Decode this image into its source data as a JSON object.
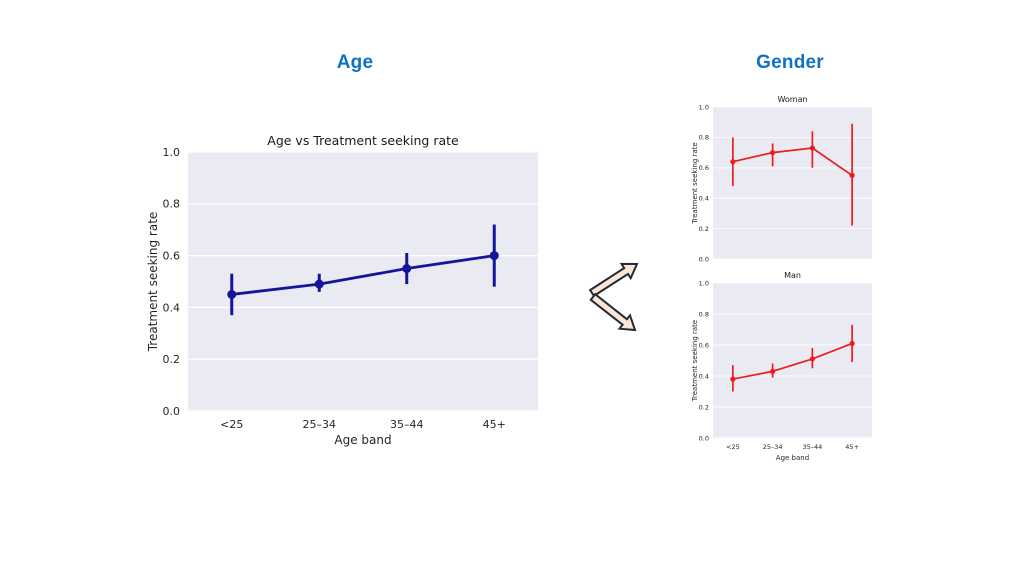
{
  "page": {
    "background": "#ffffff"
  },
  "sections": {
    "age": {
      "heading": "Age"
    },
    "gender": {
      "heading": "Gender"
    }
  },
  "colors": {
    "heading_blue": "#0e72c6",
    "age_series": "#15159c",
    "gender_series": "#ed1c1c",
    "plot_background": "#eaeaf2",
    "gridline": "#ffffff",
    "tick_text": "#262626",
    "title_text": "#1a1a1a",
    "arrow_fill": "#fae6d3",
    "arrow_outline": "#212b3c"
  },
  "chart_data": [
    {
      "id": "age_overall",
      "type": "line",
      "title": "Age vs Treatment seeking rate",
      "xlabel": "Age band",
      "ylabel": "Treatment seeking rate",
      "categories": [
        "<25",
        "25–34",
        "35–44",
        "45+"
      ],
      "values": [
        0.45,
        0.49,
        0.55,
        0.6
      ],
      "err_low": [
        0.37,
        0.46,
        0.49,
        0.48
      ],
      "err_high": [
        0.53,
        0.53,
        0.61,
        0.72
      ],
      "ylim": [
        0.0,
        1.0
      ],
      "yticks": [
        0.0,
        0.2,
        0.4,
        0.6,
        0.8,
        1.0
      ],
      "grid": true,
      "legend": "none",
      "color": "#15159c"
    },
    {
      "id": "gender_woman",
      "type": "line",
      "title": "Woman",
      "xlabel": "",
      "ylabel": "Treatment seeking rate",
      "categories": [
        "<25",
        "25–34",
        "35–44",
        "45+"
      ],
      "values": [
        0.64,
        0.7,
        0.73,
        0.55
      ],
      "err_low": [
        0.48,
        0.61,
        0.6,
        0.22
      ],
      "err_high": [
        0.8,
        0.76,
        0.84,
        0.89
      ],
      "ylim": [
        0.0,
        1.0
      ],
      "yticks": [
        0.0,
        0.2,
        0.4,
        0.6,
        0.8,
        1.0
      ],
      "grid": true,
      "legend": "none",
      "color": "#ed1c1c"
    },
    {
      "id": "gender_man",
      "type": "line",
      "title": "Man",
      "xlabel": "Age band",
      "ylabel": "Treatment seeking rate",
      "categories": [
        "<25",
        "25–34",
        "35–44",
        "45+"
      ],
      "values": [
        0.38,
        0.43,
        0.51,
        0.61
      ],
      "err_low": [
        0.3,
        0.39,
        0.45,
        0.49
      ],
      "err_high": [
        0.47,
        0.48,
        0.58,
        0.73
      ],
      "ylim": [
        0.0,
        1.0
      ],
      "yticks": [
        0.0,
        0.2,
        0.4,
        0.6,
        0.8,
        1.0
      ],
      "grid": true,
      "legend": "none",
      "color": "#ed1c1c"
    }
  ]
}
